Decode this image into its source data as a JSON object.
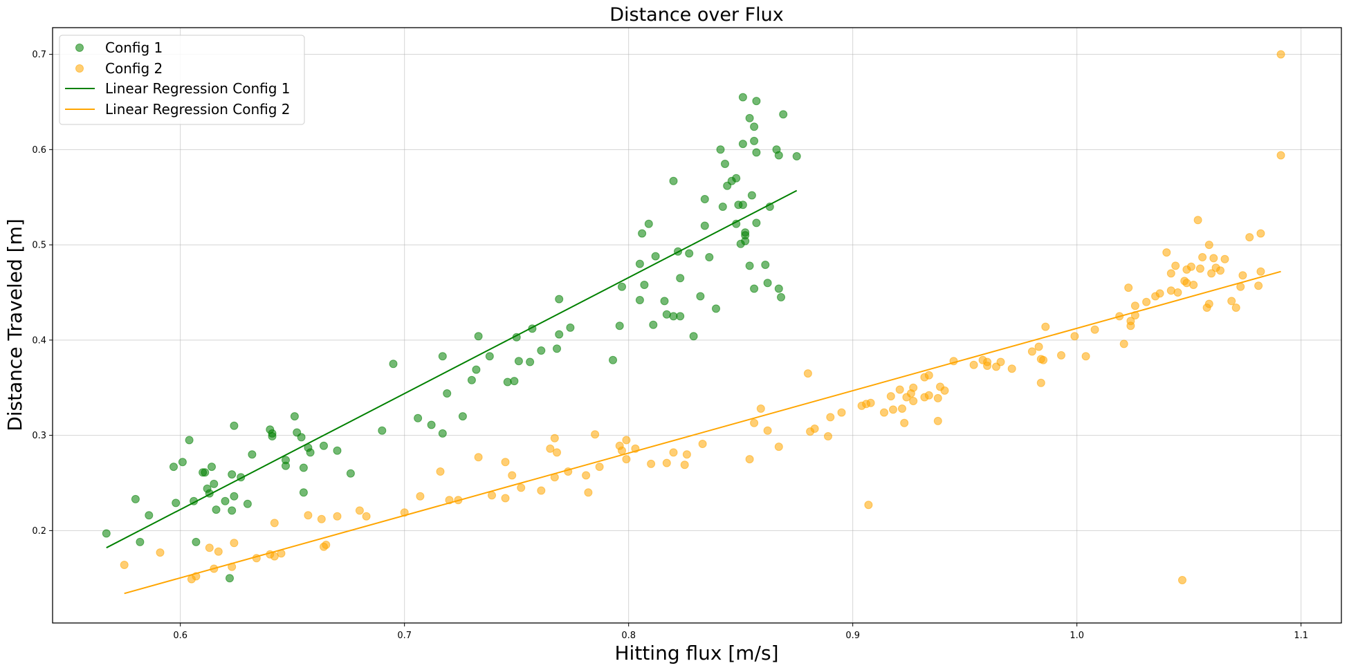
{
  "chart_data": {
    "type": "scatter",
    "title": "Distance over Flux",
    "xlabel": "Hitting flux [m/s]",
    "ylabel": "Distance Traveled [m]",
    "xlim": [
      0.543,
      1.118
    ],
    "ylim": [
      0.103,
      0.728
    ],
    "x_ticks": [
      "0.6",
      "0.7",
      "0.8",
      "0.9",
      "1.0",
      "1.1"
    ],
    "y_ticks": [
      "0.2",
      "0.3",
      "0.4",
      "0.5",
      "0.6",
      "0.7"
    ],
    "grid": true,
    "legend_position": "top-left",
    "series": [
      {
        "name": "Config 1",
        "kind": "scatter",
        "color": "#008000",
        "points": [
          [
            0.567,
            0.197
          ],
          [
            0.58,
            0.233
          ],
          [
            0.582,
            0.188
          ],
          [
            0.586,
            0.216
          ],
          [
            0.597,
            0.267
          ],
          [
            0.598,
            0.229
          ],
          [
            0.601,
            0.272
          ],
          [
            0.604,
            0.295
          ],
          [
            0.606,
            0.231
          ],
          [
            0.607,
            0.188
          ],
          [
            0.61,
            0.261
          ],
          [
            0.611,
            0.261
          ],
          [
            0.612,
            0.244
          ],
          [
            0.613,
            0.239
          ],
          [
            0.614,
            0.267
          ],
          [
            0.615,
            0.249
          ],
          [
            0.616,
            0.222
          ],
          [
            0.62,
            0.231
          ],
          [
            0.622,
            0.15
          ],
          [
            0.623,
            0.259
          ],
          [
            0.623,
            0.221
          ],
          [
            0.624,
            0.236
          ],
          [
            0.624,
            0.31
          ],
          [
            0.627,
            0.256
          ],
          [
            0.63,
            0.228
          ],
          [
            0.632,
            0.28
          ],
          [
            0.64,
            0.306
          ],
          [
            0.641,
            0.299
          ],
          [
            0.641,
            0.302
          ],
          [
            0.647,
            0.274
          ],
          [
            0.647,
            0.268
          ],
          [
            0.651,
            0.32
          ],
          [
            0.652,
            0.303
          ],
          [
            0.654,
            0.298
          ],
          [
            0.655,
            0.266
          ],
          [
            0.655,
            0.24
          ],
          [
            0.657,
            0.287
          ],
          [
            0.658,
            0.282
          ],
          [
            0.664,
            0.289
          ],
          [
            0.67,
            0.284
          ],
          [
            0.676,
            0.26
          ],
          [
            0.69,
            0.305
          ],
          [
            0.695,
            0.375
          ],
          [
            0.706,
            0.318
          ],
          [
            0.712,
            0.311
          ],
          [
            0.717,
            0.302
          ],
          [
            0.717,
            0.383
          ],
          [
            0.719,
            0.344
          ],
          [
            0.726,
            0.32
          ],
          [
            0.73,
            0.358
          ],
          [
            0.732,
            0.369
          ],
          [
            0.733,
            0.404
          ],
          [
            0.738,
            0.383
          ],
          [
            0.746,
            0.356
          ],
          [
            0.749,
            0.357
          ],
          [
            0.75,
            0.403
          ],
          [
            0.751,
            0.378
          ],
          [
            0.756,
            0.377
          ],
          [
            0.757,
            0.412
          ],
          [
            0.761,
            0.389
          ],
          [
            0.768,
            0.391
          ],
          [
            0.769,
            0.406
          ],
          [
            0.769,
            0.443
          ],
          [
            0.774,
            0.413
          ],
          [
            0.793,
            0.379
          ],
          [
            0.796,
            0.415
          ],
          [
            0.797,
            0.456
          ],
          [
            0.805,
            0.442
          ],
          [
            0.805,
            0.48
          ],
          [
            0.806,
            0.512
          ],
          [
            0.807,
            0.458
          ],
          [
            0.809,
            0.522
          ],
          [
            0.811,
            0.416
          ],
          [
            0.812,
            0.488
          ],
          [
            0.816,
            0.441
          ],
          [
            0.817,
            0.427
          ],
          [
            0.82,
            0.425
          ],
          [
            0.82,
            0.567
          ],
          [
            0.822,
            0.493
          ],
          [
            0.823,
            0.465
          ],
          [
            0.823,
            0.425
          ],
          [
            0.827,
            0.491
          ],
          [
            0.829,
            0.404
          ],
          [
            0.832,
            0.446
          ],
          [
            0.834,
            0.52
          ],
          [
            0.834,
            0.548
          ],
          [
            0.836,
            0.487
          ],
          [
            0.839,
            0.433
          ],
          [
            0.841,
            0.6
          ],
          [
            0.842,
            0.54
          ],
          [
            0.843,
            0.585
          ],
          [
            0.844,
            0.562
          ],
          [
            0.846,
            0.567
          ],
          [
            0.848,
            0.57
          ],
          [
            0.848,
            0.522
          ],
          [
            0.849,
            0.542
          ],
          [
            0.85,
            0.501
          ],
          [
            0.851,
            0.606
          ],
          [
            0.851,
            0.542
          ],
          [
            0.851,
            0.655
          ],
          [
            0.852,
            0.513
          ],
          [
            0.852,
            0.51
          ],
          [
            0.852,
            0.504
          ],
          [
            0.854,
            0.478
          ],
          [
            0.854,
            0.633
          ],
          [
            0.855,
            0.552
          ],
          [
            0.856,
            0.454
          ],
          [
            0.856,
            0.624
          ],
          [
            0.856,
            0.609
          ],
          [
            0.857,
            0.597
          ],
          [
            0.857,
            0.523
          ],
          [
            0.857,
            0.651
          ],
          [
            0.861,
            0.479
          ],
          [
            0.862,
            0.46
          ],
          [
            0.863,
            0.54
          ],
          [
            0.866,
            0.6
          ],
          [
            0.867,
            0.594
          ],
          [
            0.867,
            0.454
          ],
          [
            0.868,
            0.445
          ],
          [
            0.869,
            0.637
          ],
          [
            0.875,
            0.593
          ]
        ]
      },
      {
        "name": "Config 2",
        "kind": "scatter",
        "color": "#FFA500",
        "points": [
          [
            0.575,
            0.164
          ],
          [
            0.591,
            0.177
          ],
          [
            0.605,
            0.149
          ],
          [
            0.607,
            0.152
          ],
          [
            0.613,
            0.182
          ],
          [
            0.615,
            0.16
          ],
          [
            0.617,
            0.178
          ],
          [
            0.623,
            0.162
          ],
          [
            0.624,
            0.187
          ],
          [
            0.634,
            0.171
          ],
          [
            0.64,
            0.175
          ],
          [
            0.642,
            0.173
          ],
          [
            0.642,
            0.208
          ],
          [
            0.645,
            0.176
          ],
          [
            0.657,
            0.216
          ],
          [
            0.663,
            0.212
          ],
          [
            0.664,
            0.183
          ],
          [
            0.665,
            0.185
          ],
          [
            0.67,
            0.215
          ],
          [
            0.68,
            0.221
          ],
          [
            0.683,
            0.215
          ],
          [
            0.7,
            0.219
          ],
          [
            0.707,
            0.236
          ],
          [
            0.716,
            0.262
          ],
          [
            0.72,
            0.232
          ],
          [
            0.724,
            0.232
          ],
          [
            0.733,
            0.277
          ],
          [
            0.739,
            0.237
          ],
          [
            0.745,
            0.234
          ],
          [
            0.745,
            0.272
          ],
          [
            0.748,
            0.258
          ],
          [
            0.752,
            0.245
          ],
          [
            0.761,
            0.242
          ],
          [
            0.765,
            0.286
          ],
          [
            0.767,
            0.297
          ],
          [
            0.767,
            0.256
          ],
          [
            0.768,
            0.282
          ],
          [
            0.773,
            0.262
          ],
          [
            0.781,
            0.258
          ],
          [
            0.782,
            0.24
          ],
          [
            0.785,
            0.301
          ],
          [
            0.787,
            0.267
          ],
          [
            0.796,
            0.289
          ],
          [
            0.797,
            0.284
          ],
          [
            0.799,
            0.295
          ],
          [
            0.799,
            0.275
          ],
          [
            0.803,
            0.286
          ],
          [
            0.81,
            0.27
          ],
          [
            0.817,
            0.271
          ],
          [
            0.82,
            0.282
          ],
          [
            0.825,
            0.269
          ],
          [
            0.826,
            0.28
          ],
          [
            0.833,
            0.291
          ],
          [
            0.854,
            0.275
          ],
          [
            0.856,
            0.313
          ],
          [
            0.859,
            0.328
          ],
          [
            0.862,
            0.305
          ],
          [
            0.867,
            0.288
          ],
          [
            0.88,
            0.365
          ],
          [
            0.881,
            0.304
          ],
          [
            0.883,
            0.307
          ],
          [
            0.889,
            0.299
          ],
          [
            0.89,
            0.319
          ],
          [
            0.895,
            0.324
          ],
          [
            0.904,
            0.331
          ],
          [
            0.906,
            0.333
          ],
          [
            0.907,
            0.227
          ],
          [
            0.908,
            0.334
          ],
          [
            0.914,
            0.324
          ],
          [
            0.917,
            0.341
          ],
          [
            0.918,
            0.327
          ],
          [
            0.921,
            0.348
          ],
          [
            0.922,
            0.328
          ],
          [
            0.923,
            0.313
          ],
          [
            0.924,
            0.34
          ],
          [
            0.926,
            0.344
          ],
          [
            0.927,
            0.35
          ],
          [
            0.927,
            0.336
          ],
          [
            0.932,
            0.34
          ],
          [
            0.932,
            0.361
          ],
          [
            0.934,
            0.363
          ],
          [
            0.934,
            0.342
          ],
          [
            0.938,
            0.315
          ],
          [
            0.938,
            0.339
          ],
          [
            0.939,
            0.351
          ],
          [
            0.941,
            0.347
          ],
          [
            0.945,
            0.378
          ],
          [
            0.954,
            0.374
          ],
          [
            0.958,
            0.379
          ],
          [
            0.96,
            0.377
          ],
          [
            0.96,
            0.373
          ],
          [
            0.964,
            0.372
          ],
          [
            0.966,
            0.377
          ],
          [
            0.971,
            0.37
          ],
          [
            0.98,
            0.388
          ],
          [
            0.983,
            0.393
          ],
          [
            0.984,
            0.355
          ],
          [
            0.984,
            0.38
          ],
          [
            0.985,
            0.379
          ],
          [
            0.986,
            0.414
          ],
          [
            0.993,
            0.384
          ],
          [
            0.999,
            0.404
          ],
          [
            1.004,
            0.383
          ],
          [
            1.008,
            0.411
          ],
          [
            1.019,
            0.425
          ],
          [
            1.021,
            0.396
          ],
          [
            1.023,
            0.455
          ],
          [
            1.024,
            0.42
          ],
          [
            1.024,
            0.415
          ],
          [
            1.026,
            0.426
          ],
          [
            1.026,
            0.436
          ],
          [
            1.031,
            0.44
          ],
          [
            1.035,
            0.446
          ],
          [
            1.037,
            0.449
          ],
          [
            1.04,
            0.492
          ],
          [
            1.042,
            0.47
          ],
          [
            1.042,
            0.452
          ],
          [
            1.044,
            0.478
          ],
          [
            1.045,
            0.45
          ],
          [
            1.047,
            0.148
          ],
          [
            1.048,
            0.462
          ],
          [
            1.049,
            0.46
          ],
          [
            1.049,
            0.474
          ],
          [
            1.051,
            0.477
          ],
          [
            1.052,
            0.458
          ],
          [
            1.054,
            0.526
          ],
          [
            1.055,
            0.475
          ],
          [
            1.056,
            0.487
          ],
          [
            1.058,
            0.434
          ],
          [
            1.059,
            0.5
          ],
          [
            1.059,
            0.438
          ],
          [
            1.06,
            0.47
          ],
          [
            1.061,
            0.486
          ],
          [
            1.062,
            0.476
          ],
          [
            1.064,
            0.473
          ],
          [
            1.066,
            0.485
          ],
          [
            1.069,
            0.441
          ],
          [
            1.071,
            0.434
          ],
          [
            1.073,
            0.456
          ],
          [
            1.074,
            0.468
          ],
          [
            1.077,
            0.508
          ],
          [
            1.081,
            0.457
          ],
          [
            1.082,
            0.472
          ],
          [
            1.082,
            0.512
          ],
          [
            1.091,
            0.7
          ],
          [
            1.091,
            0.594
          ]
        ]
      },
      {
        "name": "Linear Regression Config 1",
        "kind": "line",
        "color": "#008000",
        "points": [
          [
            0.567,
            0.182
          ],
          [
            0.875,
            0.557
          ]
        ]
      },
      {
        "name": "Linear Regression Config 2",
        "kind": "line",
        "color": "#FFA500",
        "points": [
          [
            0.575,
            0.134
          ],
          [
            1.091,
            0.472
          ]
        ]
      }
    ]
  }
}
